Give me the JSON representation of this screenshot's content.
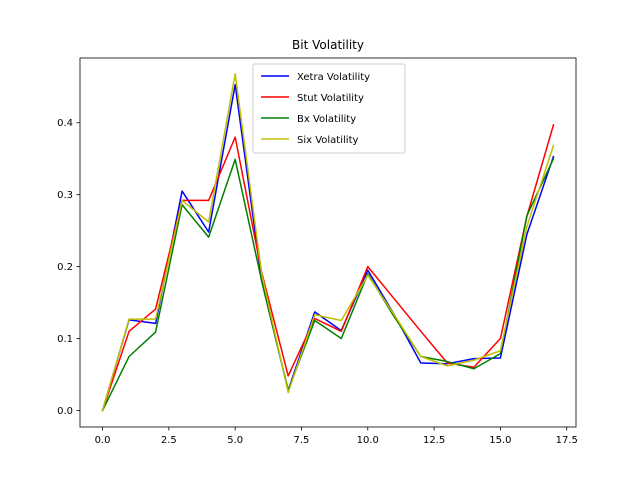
{
  "chart_data": {
    "type": "line",
    "title": "Bit Volatility",
    "xlabel": "",
    "ylabel": "",
    "xlim": [
      -0.85,
      17.85
    ],
    "ylim": [
      -0.023,
      0.49
    ],
    "xticks": [
      0,
      2.5,
      5,
      7.5,
      10,
      12.5,
      15,
      17.5
    ],
    "xtick_labels": [
      "0.0",
      "2.5",
      "5.0",
      "7.5",
      "10.0",
      "12.5",
      "15.0",
      "17.5"
    ],
    "yticks": [
      0,
      0.1,
      0.2,
      0.3,
      0.4
    ],
    "ytick_labels": [
      "0.0",
      "0.1",
      "0.2",
      "0.3",
      "0.4"
    ],
    "grid": false,
    "legend_position": "upper-center",
    "x": [
      0,
      1,
      2,
      3,
      4,
      5,
      6,
      7,
      8,
      9,
      10,
      11,
      12,
      13,
      14,
      15,
      16,
      17
    ],
    "series": [
      {
        "name": "Xetra Volatility",
        "color": "#0000ff",
        "values": [
          0,
          0.126,
          0.121,
          0.305,
          0.248,
          0.453,
          0.18,
          0.028,
          0.137,
          0.111,
          0.195,
          0.133,
          0.066,
          0.065,
          0.072,
          0.073,
          0.245,
          0.353
        ]
      },
      {
        "name": "Stut Volatility",
        "color": "#ff0000",
        "values": [
          0,
          0.11,
          0.141,
          0.292,
          0.292,
          0.38,
          0.192,
          0.048,
          0.128,
          0.11,
          0.2,
          0.155,
          0.11,
          0.066,
          0.06,
          0.1,
          0.27,
          0.397
        ]
      },
      {
        "name": "Bx Volatility",
        "color": "#008000",
        "values": [
          0,
          0.075,
          0.109,
          0.286,
          0.241,
          0.349,
          0.18,
          0.028,
          0.125,
          0.1,
          0.19,
          0.13,
          0.075,
          0.068,
          0.058,
          0.079,
          0.271,
          0.35
        ]
      },
      {
        "name": "Six Volatility",
        "color": "#bfbf00",
        "values": [
          0,
          0.127,
          0.127,
          0.292,
          0.262,
          0.468,
          0.19,
          0.025,
          0.133,
          0.125,
          0.188,
          0.133,
          0.075,
          0.062,
          0.07,
          0.083,
          0.256,
          0.368
        ]
      }
    ]
  }
}
